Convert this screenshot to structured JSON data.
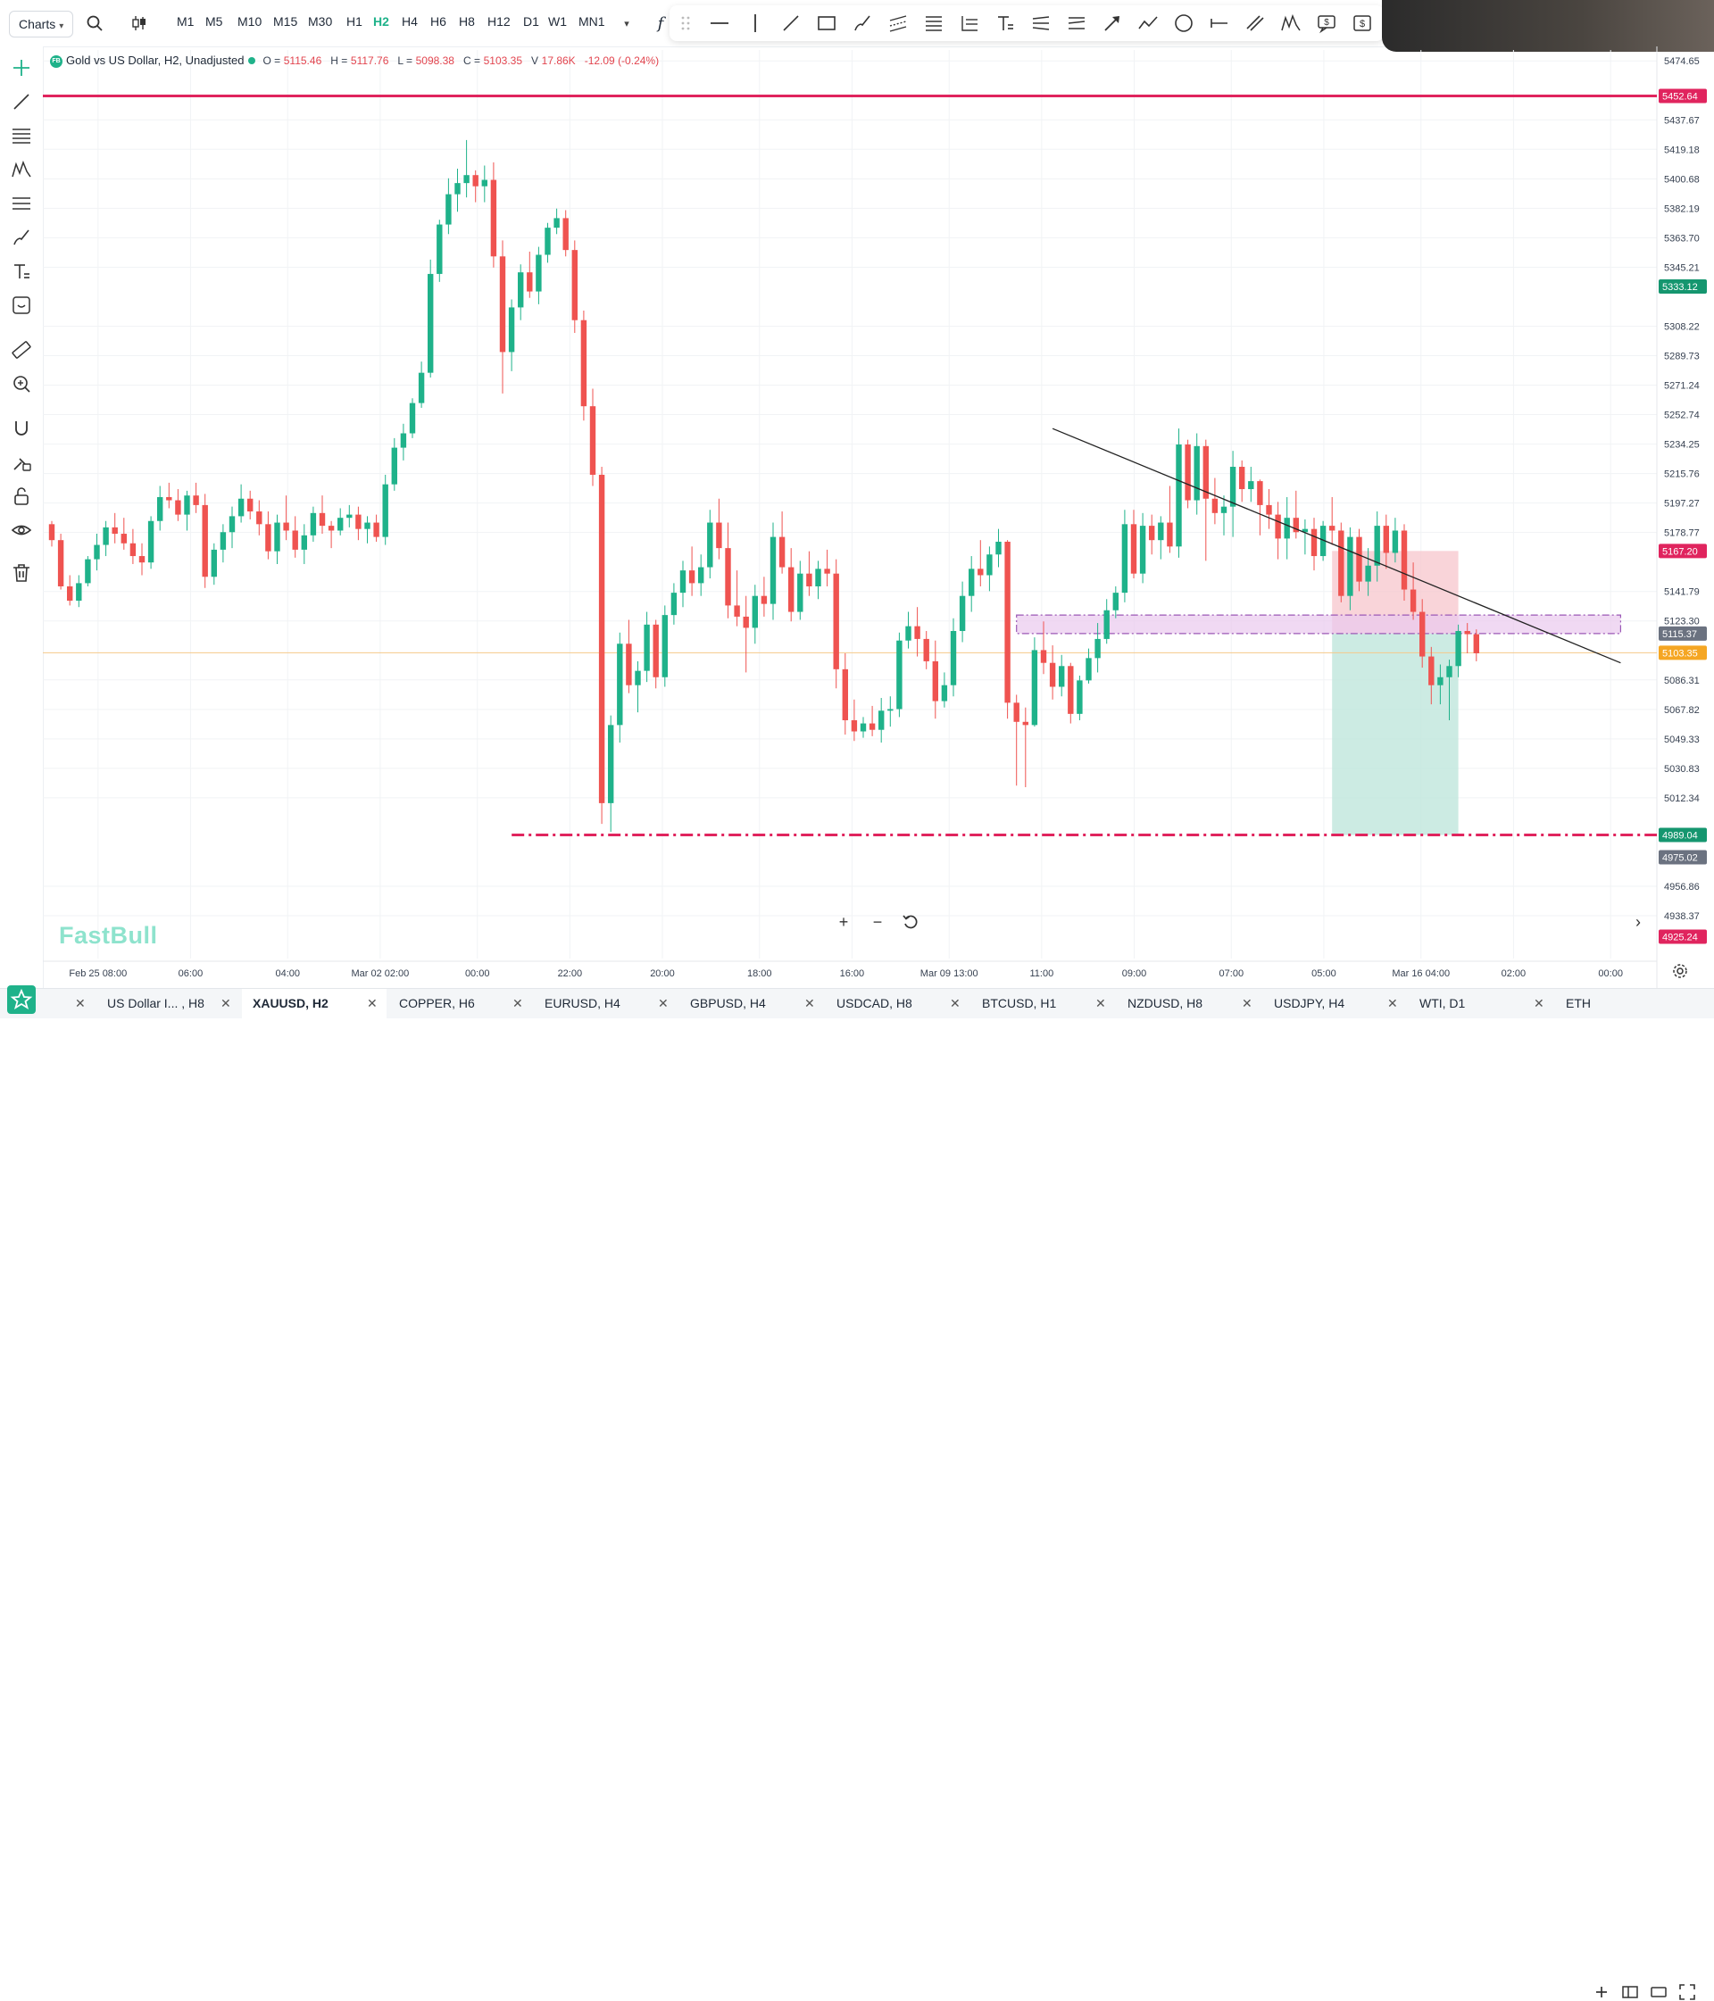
{
  "toolbar": {
    "charts_label": "Charts",
    "timeframes": [
      "M1",
      "M5",
      "M10",
      "M15",
      "M30",
      "H1",
      "H2",
      "H4",
      "H6",
      "H8",
      "H12",
      "D1",
      "W1",
      "MN1"
    ],
    "active_timeframe": "H2"
  },
  "legend": {
    "title": "Gold vs US Dollar, H2, Unadjusted",
    "o_label": "O =",
    "o": "5115.46",
    "h_label": "H =",
    "h": "5117.76",
    "l_label": "L =",
    "l": "5098.38",
    "c_label": "C =",
    "c": "5103.35",
    "v_label": "V",
    "v": "17.86K",
    "change": "-12.09 (-0.24%)",
    "badge": "FB"
  },
  "brand": "FastBull",
  "colors": {
    "up": "#1fb28a",
    "down": "#ef5350",
    "accent": "#1fb28a",
    "hline": "#e0245e"
  },
  "chart_data": {
    "type": "candlestick",
    "symbol": "XAUUSD",
    "timeframe": "H2",
    "ylim": [
      4911.5,
      5481.5
    ],
    "price_ticks": [
      "5474.65",
      "5437.67",
      "5419.18",
      "5400.68",
      "5382.19",
      "5363.70",
      "5345.21",
      "5308.22",
      "5289.73",
      "5271.24",
      "5252.74",
      "5234.25",
      "5215.76",
      "5197.27",
      "5178.77",
      "5141.79",
      "5123.30",
      "5086.31",
      "5067.82",
      "5049.33",
      "5030.83",
      "5012.34",
      "4956.86",
      "4938.37"
    ],
    "time_ticks": [
      "Feb 25 08:00",
      "06:00",
      "04:00",
      "Mar 02 02:00",
      "00:00",
      "22:00",
      "20:00",
      "18:00",
      "16:00",
      "Mar 09 13:00",
      "11:00",
      "09:00",
      "07:00",
      "05:00",
      "Mar 16 04:00",
      "02:00",
      "00:00"
    ],
    "badges": [
      {
        "price": "5452.64",
        "color": "#e0245e"
      },
      {
        "price": "5333.12",
        "color": "#15966f"
      },
      {
        "price": "5167.20",
        "color": "#e0245e"
      },
      {
        "price": "5115.37",
        "color": "#6b7280"
      },
      {
        "price": "5103.35",
        "color": "#f5a623"
      },
      {
        "price": "4989.04",
        "color": "#15966f"
      },
      {
        "price": "4975.02",
        "color": "#6b7280"
      },
      {
        "price": "4925.24",
        "color": "#e0245e"
      }
    ],
    "hlines": [
      {
        "price": 5452.64,
        "style": "solid",
        "color": "#e0245e",
        "from_index": 0
      },
      {
        "price": 4989.04,
        "style": "dashdot",
        "color": "#e0245e",
        "from_index": 52
      },
      {
        "price": 5103.35,
        "style": "thin",
        "color": "#f5c98a",
        "from_index": 0
      }
    ],
    "zone": {
      "top": 5127.0,
      "bottom": 5115.4,
      "from_index": 107,
      "to_index": 174
    },
    "trendline": {
      "start": {
        "i": 111,
        "price": 5244.0
      },
      "end": {
        "i": 174,
        "price": 5097.0
      }
    },
    "position": {
      "entry": 5115.4,
      "stop": 5167.2,
      "target": 4989.04,
      "from_index": 142,
      "to_index": 156
    },
    "ohlc_compact": "5184,5186,5170,5174;5174,5178,5143,5145;5145,5152,5133,5136;5136,5152,5132,5147;5147,5164,5145,5162;5162,5178,5155,5171;5171,5186,5164,5182;5182,5191,5172,5178;5178,5188,5168,5172;5172,5181,5159,5164;5164,5172,5152,5160;5160,5189,5156,5186;5186,5208,5180,5201;5201,5210,5194,5199;5199,5206,5186,5190;5190,5205,5180,5202;5202,5210,5191,5196;5196,5203,5144,5151;5151,5172,5146,5168;5168,5184,5160,5179;5179,5195,5169,5189;5189,5209,5185,5200;5200,5205,5187,5192;5192,5199,5177,5184;5184,5192,5162,5167;5167,5190,5159,5185;5185,5202,5174,5180;5180,5189,5163,5168;5168,5184,5159,5177;5177,5195,5173,5191;5191,5202,5178,5183;5183,5186,5169,5180;5180,5194,5177,5188;5188,5196,5182,5190;5190,5195,5174,5181;5181,5189,5172,5185;5185,5190,5173,5176;5176,5215,5171,5209;5209,5238,5205,5232;5232,5247,5224,5241;5241,5263,5238,5260;5260,5286,5257,5279;5279,5350,5276,5341;5341,5375,5336,5372;5372,5401,5366,5391;5391,5407,5380,5398;5398,5425,5389,5403;5403,5406,5386,5396;5396,5409,5386,5400;5400,5411,5345,5352;5352,5362,5266,5292;5292,5325,5280,5320;5320,5347,5312,5342;5342,5355,5326,5330;5330,5358,5322,5353;5353,5373,5348,5370;5370,5382,5366,5376;5376,5381,5352,5356;5356,5362,5304,5312;5312,5318,5249,5258;5258,5269,5208,5215;5215,5220,4996,5009;5009,5064,4991,5058;5058,5116,5047,5109;5109,5124,5078,5083;5083,5098,5066,5092;5092,5129,5085,5121;5121,5124,5081,5088;5088,5133,5082,5127;5127,5147,5121,5141;5141,5161,5132,5155;5155,5170,5139,5147;5147,5165,5139,5157;5157,5193,5150,5185;5185,5200,5162,5169;5169,5185,5125,5133;5133,5155,5120,5126;5126,5139,5091,5119;5119,5146,5109,5139;5139,5151,5126,5134;5134,5185,5124,5176;5176,5192,5153,5157;5157,5169,5123,5129;5129,5161,5124,5153;5153,5167,5139,5145;5145,5161,5137,5156;5156,5168,5145,5153;5153,5162,5081,5093;5093,5103,5052,5061;5061,5074,5048,5054;5054,5063,5050,5059;5059,5070,5051,5055;5055,5075,5047,5067;5067,5076,5057,5068;5068,5116,5063,5111;5111,5129,5106,5120;5120,5132,5101,5112;5112,5117,5093,5098;5098,5111,5062,5073;5073,5091,5069,5083;5083,5125,5076,5117;5117,5148,5110,5139;5139,5164,5129,5156;5156,5174,5145,5152;5152,5170,5142,5165;5165,5181,5157,5173;5173,5174,5062,5072;5072,5077,5020,5060;5060,5069,5019,5058;5058,5113,5057,5105;5105,5123,5090,5097;5097,5108,5074,5082;5082,5102,5076,5095;5095,5097,5059,5065;5065,5089,5061,5086;5086,5106,5084,5100;5100,5122,5091,5112;5112,5137,5109,5130;5130,5145,5125,5141;5141,5193,5135,5184;5184,5193,5150,5153;5153,5191,5147,5183;5183,5190,5165,5174;5174,5189,5162,5185;5185,5208,5166,5170;5170,5244,5163,5234;5234,5237,5194,5199;5199,5241,5190,5233;5233,5237,5161,5200;5200,5213,5184,5191;5191,5202,5177,5195;5195,5230,5176,5220;5220,5224,5198,5206;5206,5220,5198,5211;5211,5212,5177,5196;5196,5206,5181,5190;5190,5198,5162,5175;5175,5201,5162,5188;5188,5205,5175,5179;5179,5187,5165,5181;5181,5188,5155,5164;5164,5186,5161,5183;5183,5201,5171,5180;5180,5185,5135,5139;5139,5182,5130,5176;5176,5181,5142,5148;5148,5169,5139,5158;5158,5192,5148,5183;5183,5190,5156,5166;5166,5188,5160,5180;5180,5184,5136,5143;5143,5160,5124,5129;5129,5137,5094,5101;5101,5107,5071,5083;5083,5096,5071,5088;5088,5099,5061,5095;5095,5121,5088,5117;5117,5122,5103,5115;5115,5118,5098,5103"
  },
  "tabs": [
    {
      "label": "US Dollar I... , H8",
      "active": false
    },
    {
      "label": "XAUUSD, H2",
      "active": true
    },
    {
      "label": "COPPER, H6",
      "active": false
    },
    {
      "label": "EURUSD, H4",
      "active": false
    },
    {
      "label": "GBPUSD, H4",
      "active": false
    },
    {
      "label": "USDCAD, H8",
      "active": false
    },
    {
      "label": "BTCUSD, H1",
      "active": false
    },
    {
      "label": "NZDUSD, H8",
      "active": false
    },
    {
      "label": "USDJPY, H4",
      "active": false
    },
    {
      "label": "WTI, D1",
      "active": false
    },
    {
      "label": "ETH",
      "active": false
    }
  ],
  "tab_close_glyph": "✕"
}
